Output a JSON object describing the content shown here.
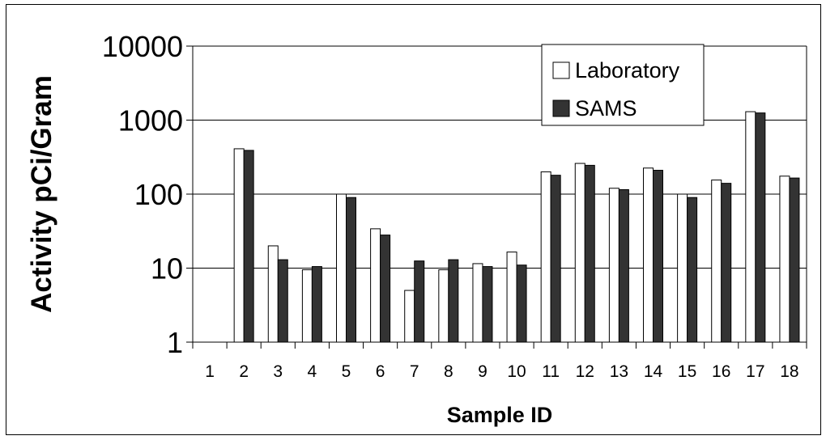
{
  "chart_data": {
    "type": "bar",
    "scale": "log",
    "ylabel": "Activity pCi/Gram",
    "xlabel": "Sample ID",
    "ylim": [
      1,
      10000
    ],
    "yticks": [
      "1",
      "10",
      "100",
      "1000",
      "10000"
    ],
    "grid": true,
    "legend_position": "top-right",
    "categories": [
      "1",
      "2",
      "3",
      "4",
      "5",
      "6",
      "7",
      "8",
      "9",
      "10",
      "11",
      "12",
      "13",
      "14",
      "15",
      "16",
      "17",
      "18"
    ],
    "series": [
      {
        "name": "Laboratory",
        "color": "#ffffff",
        "values": [
          null,
          410,
          20,
          9.5,
          100,
          34,
          5,
          9.5,
          11.5,
          16.5,
          200,
          260,
          120,
          225,
          100,
          155,
          1300,
          175
        ]
      },
      {
        "name": "SAMS",
        "color": "#333333",
        "values": [
          null,
          390,
          13,
          10.5,
          90,
          28,
          12.5,
          13,
          10.5,
          11,
          180,
          245,
          115,
          210,
          90,
          140,
          1250,
          165
        ]
      }
    ]
  }
}
